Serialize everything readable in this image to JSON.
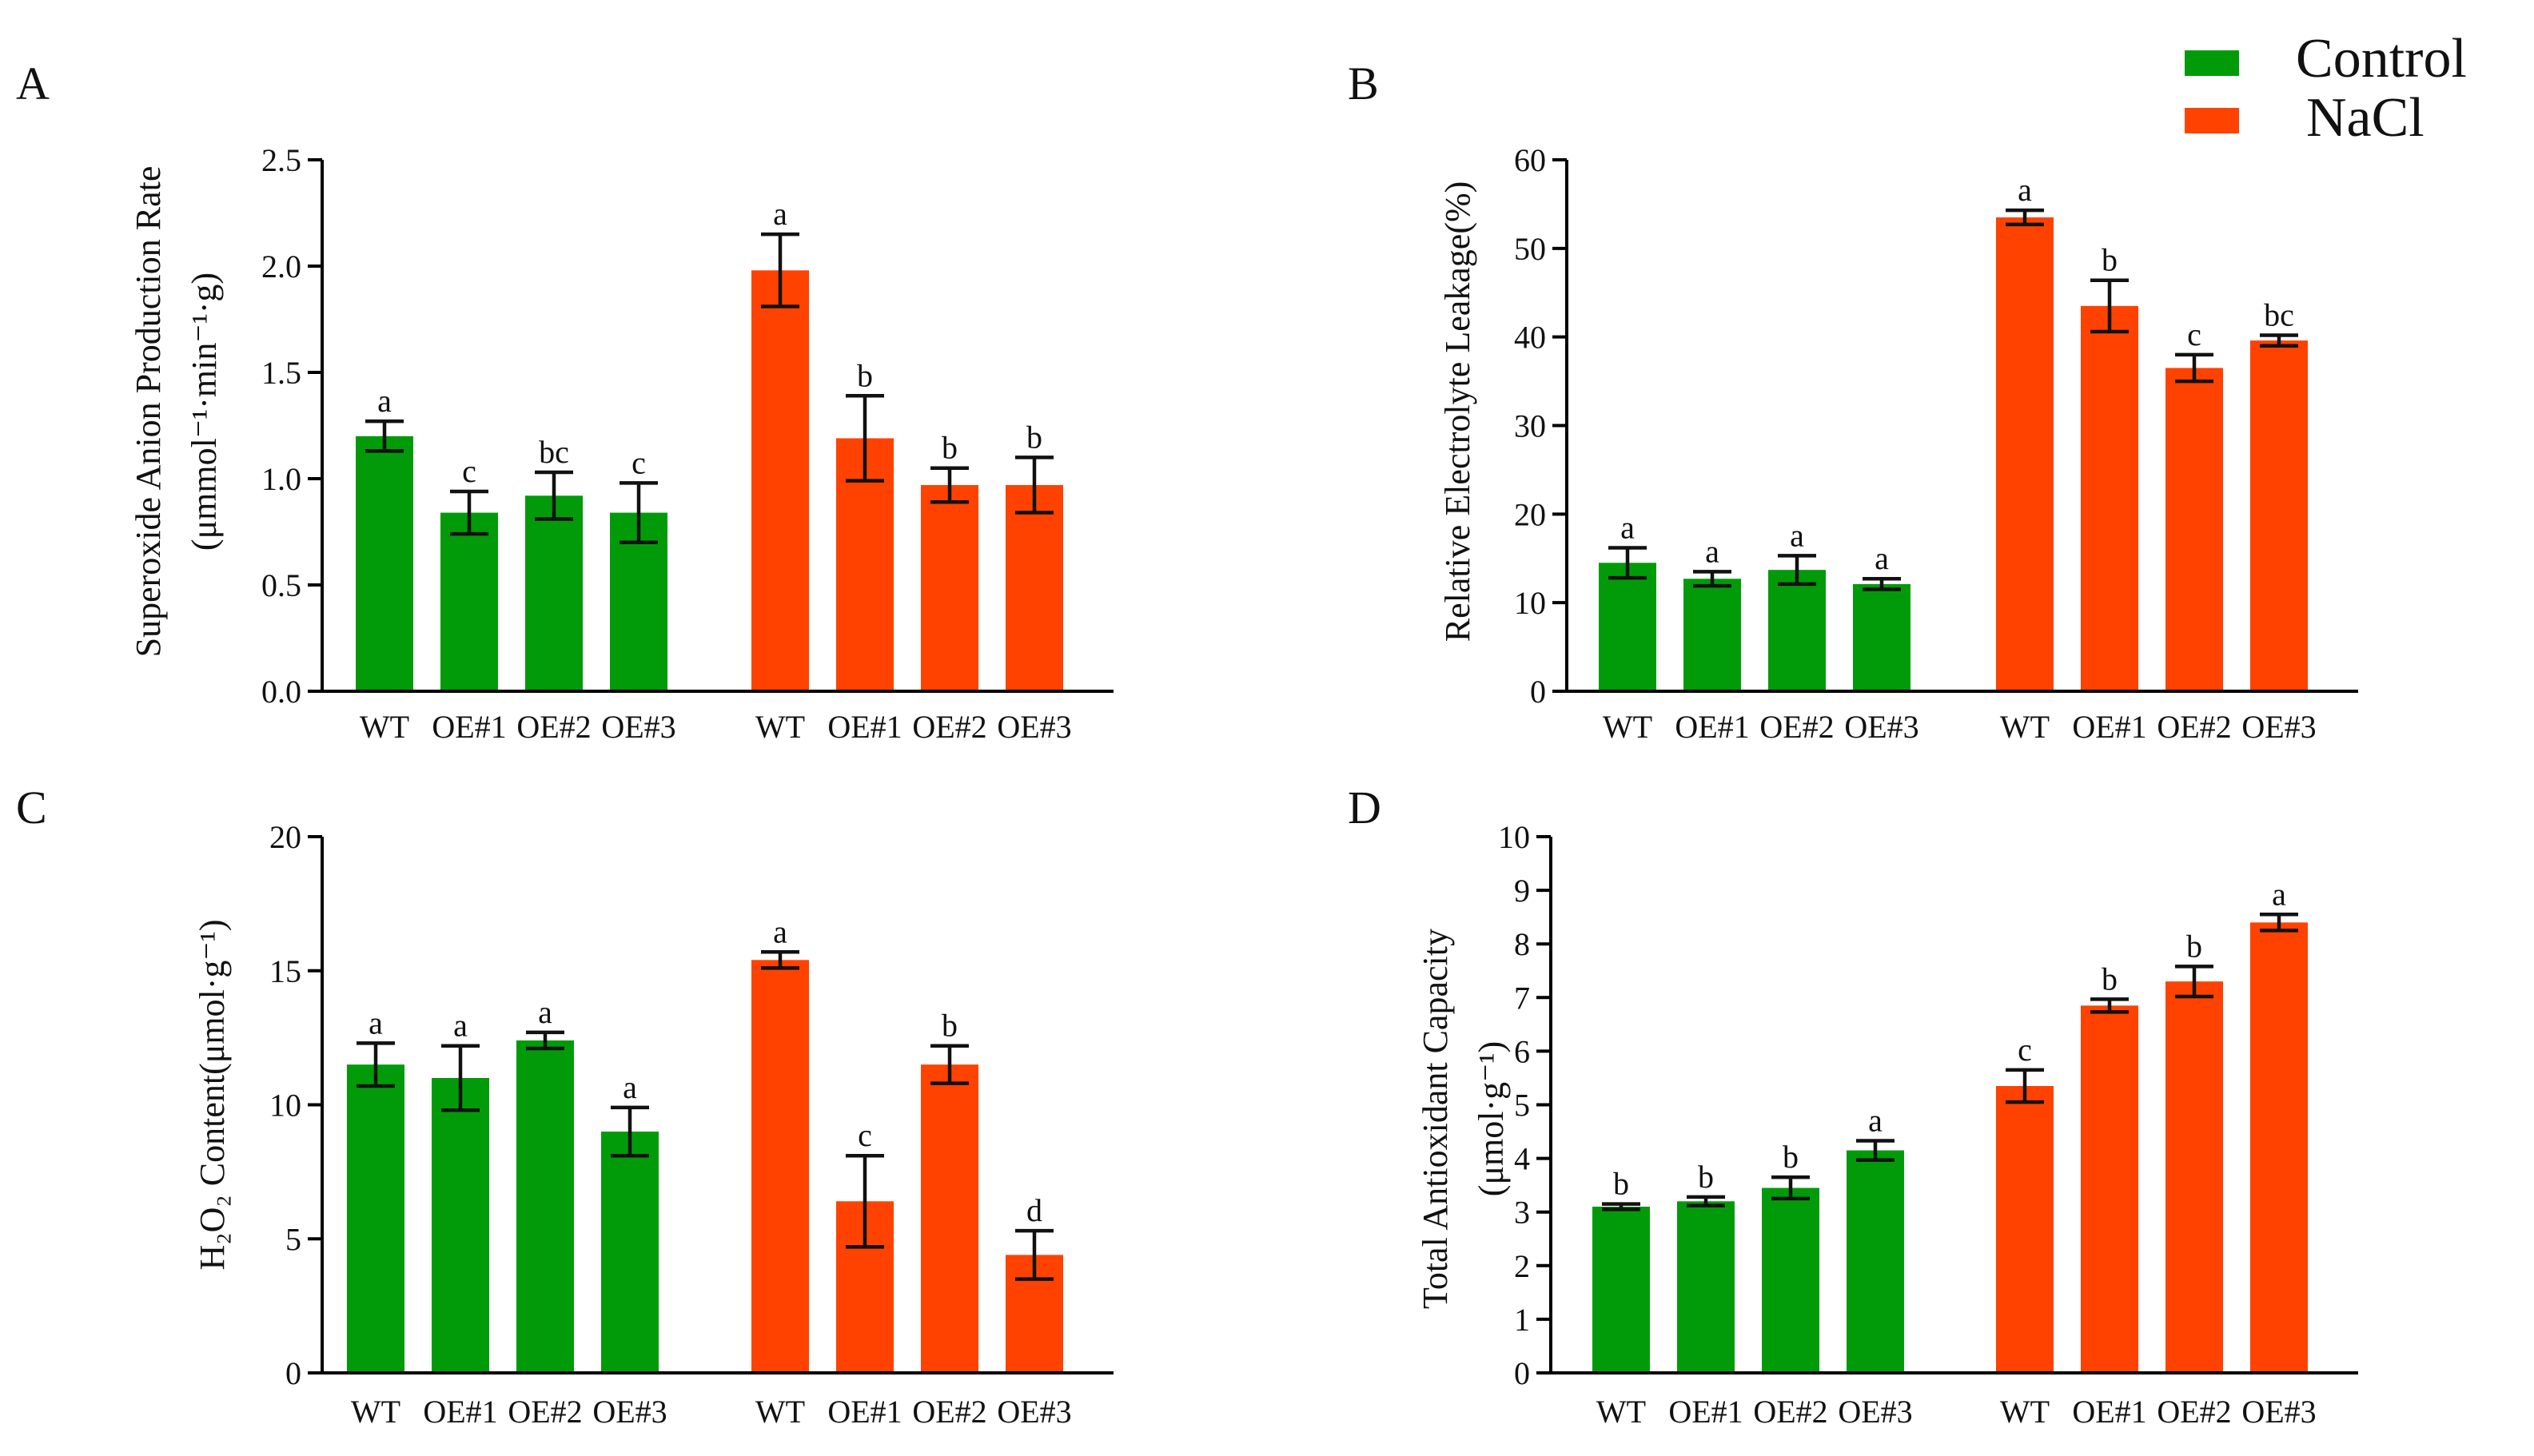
{
  "legend": {
    "items": [
      {
        "label": "Control",
        "color": "#019B0A"
      },
      {
        "label": "NaCl",
        "color": "#FF4200"
      }
    ]
  },
  "chart_data": [
    {
      "panel": "A",
      "type": "bar",
      "title": "",
      "xlabel": "",
      "ylabel": "Superoxide Anion Production Rate",
      "ylabel_line2": "(μmmol⁻¹·min⁻¹·g)",
      "ylim": [
        0,
        2.5
      ],
      "yticks": [
        "0.0",
        "0.5",
        "1.0",
        "1.5",
        "2.0",
        "2.5"
      ],
      "categories": [
        "WT",
        "OE#1",
        "OE#2",
        "OE#3"
      ],
      "series": [
        {
          "name": "Control",
          "values": [
            1.2,
            0.84,
            0.92,
            0.84
          ],
          "errors": [
            0.07,
            0.1,
            0.11,
            0.14
          ],
          "letters": [
            "a",
            "c",
            "bc",
            "c"
          ]
        },
        {
          "name": "NaCl",
          "values": [
            1.98,
            1.19,
            0.97,
            0.97
          ],
          "errors": [
            0.17,
            0.2,
            0.08,
            0.13
          ],
          "letters": [
            "a",
            "b",
            "b",
            "b"
          ]
        }
      ]
    },
    {
      "panel": "B",
      "type": "bar",
      "title": "",
      "xlabel": "",
      "ylabel": "Relative Electrolyte Leakage(%)",
      "ylabel_line2": "",
      "ylim": [
        0,
        60
      ],
      "yticks": [
        "0",
        "10",
        "20",
        "30",
        "40",
        "50",
        "60"
      ],
      "categories": [
        "WT",
        "OE#1",
        "OE#2",
        "OE#3"
      ],
      "series": [
        {
          "name": "Control",
          "values": [
            14.5,
            12.7,
            13.7,
            12.1
          ],
          "errors": [
            1.7,
            0.8,
            1.6,
            0.6
          ],
          "letters": [
            "a",
            "a",
            "a",
            "a"
          ]
        },
        {
          "name": "NaCl",
          "values": [
            53.5,
            43.5,
            36.5,
            39.6
          ],
          "errors": [
            0.8,
            2.9,
            1.5,
            0.6
          ],
          "letters": [
            "a",
            "b",
            "c",
            "bc"
          ]
        }
      ]
    },
    {
      "panel": "C",
      "type": "bar",
      "title": "",
      "xlabel": "",
      "ylabel": "H₂O₂ Content(μmol·g⁻¹)",
      "ylabel_line2": "",
      "ylim": [
        0,
        20
      ],
      "yticks": [
        "0",
        "5",
        "10",
        "15",
        "20"
      ],
      "categories": [
        "WT",
        "OE#1",
        "OE#2",
        "OE#3"
      ],
      "series": [
        {
          "name": "Control",
          "values": [
            11.5,
            11.0,
            12.4,
            9.0
          ],
          "errors": [
            0.8,
            1.2,
            0.3,
            0.9
          ],
          "letters": [
            "a",
            "a",
            "a",
            "a"
          ]
        },
        {
          "name": "NaCl",
          "values": [
            15.4,
            6.4,
            11.5,
            4.4
          ],
          "errors": [
            0.3,
            1.7,
            0.7,
            0.9
          ],
          "letters": [
            "a",
            "c",
            "b",
            "d"
          ]
        }
      ]
    },
    {
      "panel": "D",
      "type": "bar",
      "title": "",
      "xlabel": "",
      "ylabel": "Total Antioxidant Capacity",
      "ylabel_line2": "(μmol·g⁻¹)",
      "ylim": [
        0,
        10
      ],
      "yticks": [
        "0",
        "1",
        "2",
        "3",
        "4",
        "5",
        "6",
        "7",
        "8",
        "9",
        "10"
      ],
      "categories": [
        "WT",
        "OE#1",
        "OE#2",
        "OE#3"
      ],
      "series": [
        {
          "name": "Control",
          "values": [
            3.1,
            3.2,
            3.45,
            4.15
          ],
          "errors": [
            0.05,
            0.08,
            0.2,
            0.18
          ],
          "letters": [
            "b",
            "b",
            "b",
            "a"
          ]
        },
        {
          "name": "NaCl",
          "values": [
            5.35,
            6.85,
            7.3,
            8.4
          ],
          "errors": [
            0.3,
            0.12,
            0.28,
            0.15
          ],
          "letters": [
            "c",
            "b",
            "b",
            "a"
          ]
        }
      ]
    }
  ]
}
